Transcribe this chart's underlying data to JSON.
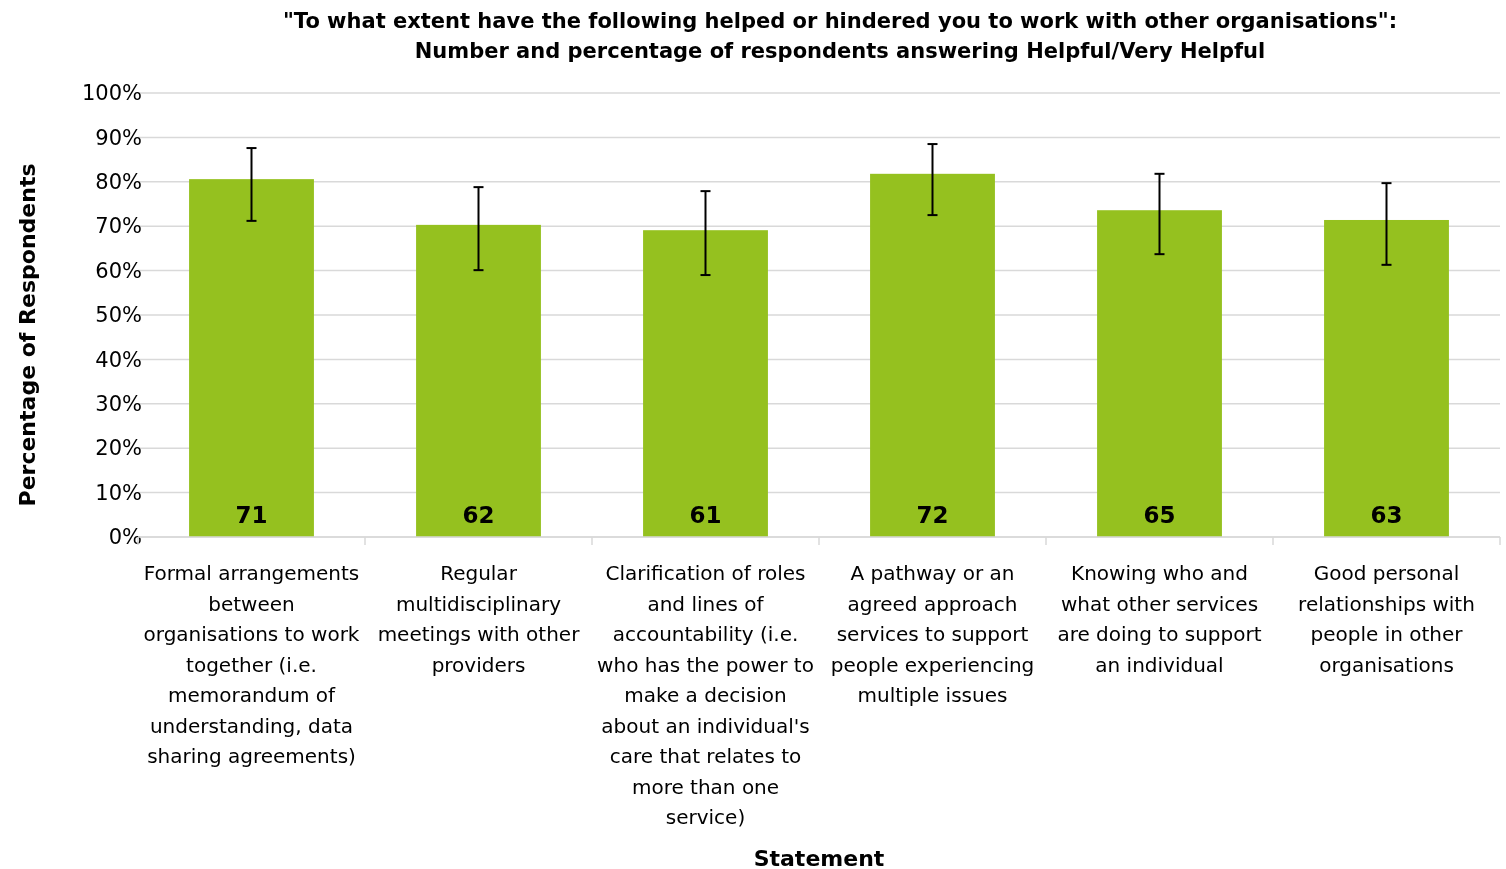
{
  "chart_data": {
    "type": "bar",
    "title": "\"To what extent have the following helped or hindered you to work with other organisations\":\nNumber and percentage of respondents answering Helpful/Very Helpful",
    "xlabel": "Statement",
    "ylabel": "Percentage of Respondents",
    "categories": [
      "Formal arrangements between organisations to work together (i.e. memorandum of understanding, data sharing agreements)",
      "Regular multidisciplinary meetings with other providers",
      "Clarification of roles and lines of accountability (i.e. who has the power to make a decision about an individual's care that relates to more than one service)",
      "A pathway or an agreed approach services to support people experiencing multiple issues",
      "Knowing who and what other services are doing to support an individual",
      "Good personal relationships with people in other organisations"
    ],
    "values": [
      80.6,
      70.3,
      69.1,
      81.8,
      73.6,
      71.4
    ],
    "errors": [
      [
        71.2,
        87.6
      ],
      [
        60.1,
        78.8
      ],
      [
        59.0,
        77.9
      ],
      [
        72.5,
        88.5
      ],
      [
        63.7,
        81.8
      ],
      [
        61.3,
        79.7
      ]
    ],
    "annotations": [
      "71",
      "62",
      "61",
      "72",
      "65",
      "63"
    ],
    "color": "#95c11f",
    "ylim": [
      0,
      100
    ],
    "yticks": [
      {
        "value": 0,
        "label": "0%"
      },
      {
        "value": 10,
        "label": "10%"
      },
      {
        "value": 20,
        "label": "20%"
      },
      {
        "value": 30,
        "label": "30%"
      },
      {
        "value": 40,
        "label": "40%"
      },
      {
        "value": 50,
        "label": "50%"
      },
      {
        "value": 60,
        "label": "60%"
      },
      {
        "value": 70,
        "label": "70%"
      },
      {
        "value": 80,
        "label": "80%"
      },
      {
        "value": 90,
        "label": "90%"
      },
      {
        "value": 100,
        "label": "100%"
      }
    ],
    "grid": "y"
  }
}
